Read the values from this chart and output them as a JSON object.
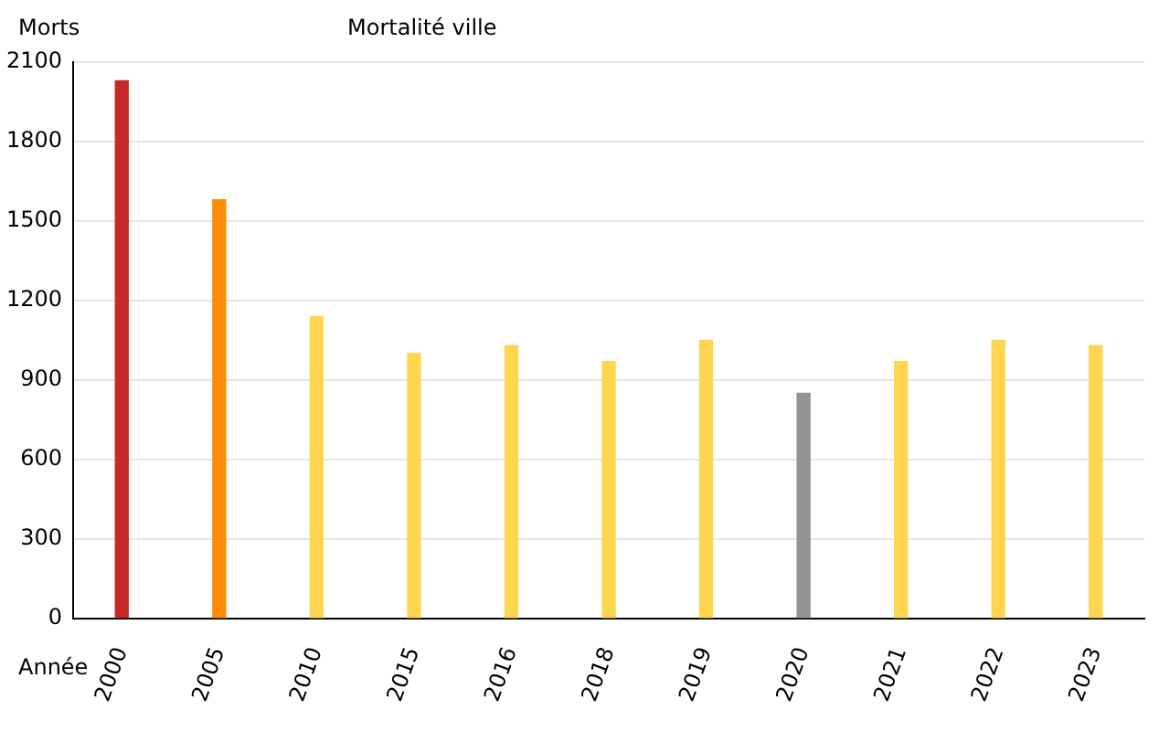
{
  "chart_data": {
    "type": "bar",
    "title": "Mortalité ville",
    "ylabel": "Morts",
    "xlabel": "Année",
    "categories": [
      "2000",
      "2005",
      "2010",
      "2015",
      "2016",
      "2018",
      "2019",
      "2020",
      "2021",
      "2022",
      "2023"
    ],
    "values": [
      2030,
      1580,
      1140,
      1000,
      1030,
      970,
      1050,
      850,
      970,
      1050,
      1030
    ],
    "colors": [
      "#c62828",
      "#ff8c00",
      "#ffd54f",
      "#ffd54f",
      "#ffd54f",
      "#ffd54f",
      "#ffd54f",
      "#939393",
      "#ffd54f",
      "#ffd54f",
      "#ffd54f"
    ],
    "ylim": [
      0,
      2100
    ],
    "yticks": [
      0,
      300,
      600,
      900,
      1200,
      1500,
      1800,
      2100
    ],
    "grid": "y"
  }
}
